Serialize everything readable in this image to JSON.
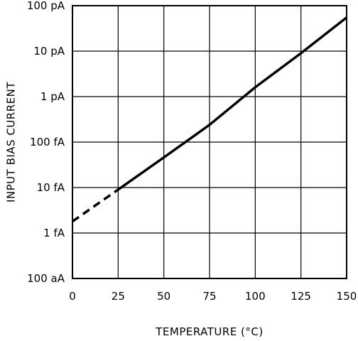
{
  "chart_data": {
    "type": "line",
    "title": "",
    "xlabel": "TEMPERATURE (°C)",
    "ylabel": "INPUT BIAS CURRENT",
    "x_ticks": [
      0,
      25,
      50,
      75,
      100,
      125,
      150
    ],
    "y_scale": "log",
    "y_ticks": [
      {
        "value": 1e-16,
        "label": "100 aA"
      },
      {
        "value": 1e-15,
        "label": "1 fA"
      },
      {
        "value": 1e-14,
        "label": "10 fA"
      },
      {
        "value": 1e-13,
        "label": "100 fA"
      },
      {
        "value": 1e-12,
        "label": "1 pA"
      },
      {
        "value": 1e-11,
        "label": "10 pA"
      },
      {
        "value": 1e-10,
        "label": "100 pA"
      }
    ],
    "xlim": [
      0,
      150
    ],
    "ylim": [
      1e-16,
      1e-10
    ],
    "grid": true,
    "series": [
      {
        "style": "dashed",
        "x": [
          0,
          25
        ],
        "y": [
          1.8e-15,
          9e-15
        ]
      },
      {
        "style": "solid",
        "x": [
          25,
          50,
          75,
          100,
          125,
          150
        ],
        "y": [
          9e-15,
          4.6e-14,
          2.4e-13,
          1.6e-12,
          9e-12,
          5.5e-11
        ]
      }
    ]
  }
}
